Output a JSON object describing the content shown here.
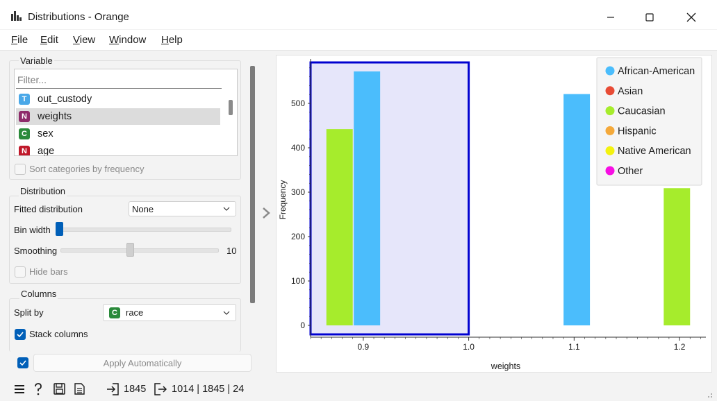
{
  "window": {
    "title": "Distributions - Orange",
    "icons": [
      "bar-chart-icon",
      "minimize-icon",
      "maximize-icon",
      "close-icon"
    ]
  },
  "menu": {
    "items": [
      {
        "label": "File",
        "hotkey": "F",
        "rest": "ile"
      },
      {
        "label": "Edit",
        "hotkey": "E",
        "rest": "dit"
      },
      {
        "label": "View",
        "hotkey": "V",
        "rest": "iew"
      },
      {
        "label": "Window",
        "hotkey": "W",
        "rest": "indow"
      },
      {
        "label": "Help",
        "hotkey": "H",
        "rest": "elp"
      }
    ]
  },
  "variable": {
    "title": "Variable",
    "filter_placeholder": "Filter...",
    "items": [
      {
        "badge": "T",
        "badge_color": "#4aa8e8",
        "label": "out_custody",
        "selected": false
      },
      {
        "badge": "N",
        "badge_color": "#8e2b6a",
        "label": "weights",
        "selected": true
      },
      {
        "badge": "C",
        "badge_color": "#2a8a3a",
        "label": "sex",
        "selected": false
      },
      {
        "badge": "N",
        "badge_color": "#c0182a",
        "label": "age",
        "selected": false
      }
    ],
    "sort_label": "Sort categories by frequency"
  },
  "distribution": {
    "title": "Distribution",
    "fitted_label": "Fitted distribution",
    "fitted_value": "None",
    "bin_width_label": "Bin width",
    "smoothing_label": "Smoothing",
    "smoothing_value": "10",
    "hide_bars_label": "Hide bars"
  },
  "columns": {
    "title": "Columns",
    "split_label": "Split by",
    "split_badge": "C",
    "split_value": "race",
    "stack_label": "Stack columns"
  },
  "apply": {
    "label": "Apply Automatically",
    "checked": true
  },
  "status": {
    "input_count": "1845",
    "output_summary": "1014 | 1845 | 24",
    "icons": [
      "menu-icon",
      "help-icon",
      "save-icon",
      "report-icon",
      "input-icon",
      "output-icon"
    ]
  },
  "colors": {
    "accent": "#005fb8",
    "selection_fill": "#e6e6fa",
    "selection_border": "#0000d0"
  },
  "chart_data": {
    "type": "bar",
    "xlabel": "weights",
    "ylabel": "Frequency",
    "x_ticks": [
      "0.9",
      "1.0",
      "1.1",
      "1.2"
    ],
    "y_ticks": [
      "0",
      "100",
      "200",
      "300",
      "400",
      "500"
    ],
    "xlim": [
      0.85,
      1.225
    ],
    "ylim": [
      0,
      600
    ],
    "legend_position": "top-right",
    "series": [
      {
        "name": "African-American",
        "color": "#4bbdfc"
      },
      {
        "name": "Asian",
        "color": "#e84b35"
      },
      {
        "name": "Caucasian",
        "color": "#a6ec2c"
      },
      {
        "name": "Hispanic",
        "color": "#f4a93a"
      },
      {
        "name": "Native American",
        "color": "#f3f20f"
      },
      {
        "name": "Other",
        "color": "#f70ee3"
      }
    ],
    "bars": [
      {
        "x_from": 0.865,
        "x_to": 0.89,
        "series": "Caucasian",
        "value": 442
      },
      {
        "x_from": 0.891,
        "x_to": 0.916,
        "series": "African-American",
        "value": 572
      },
      {
        "x_from": 1.09,
        "x_to": 1.115,
        "series": "African-American",
        "value": 521
      },
      {
        "x_from": 1.185,
        "x_to": 1.21,
        "series": "Caucasian",
        "value": 309
      }
    ],
    "selection": {
      "x_from": 0.85,
      "x_to": 1.0
    }
  }
}
